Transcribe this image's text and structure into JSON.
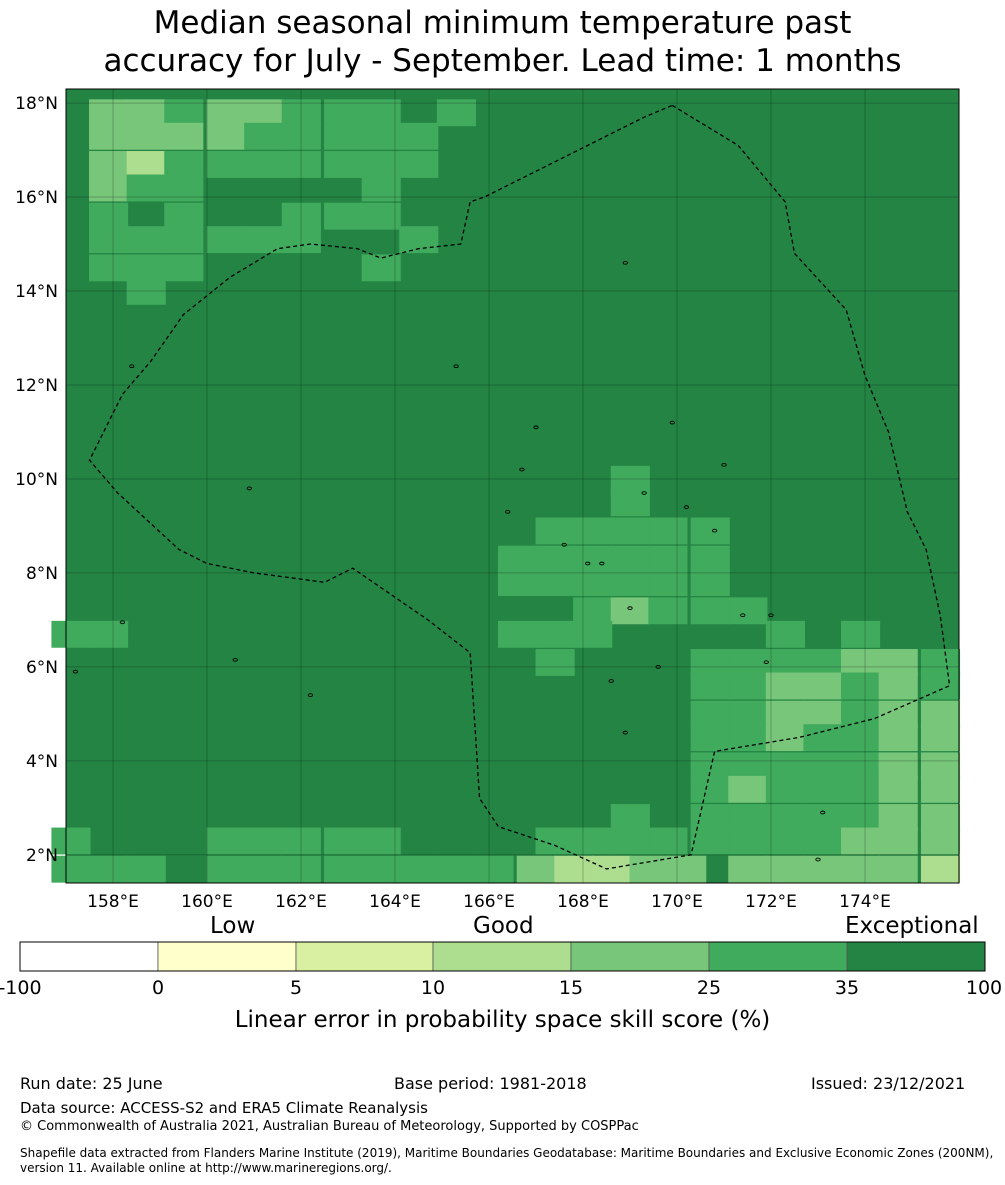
{
  "title": {
    "line1": "Median seasonal minimum temperature past",
    "line2": "accuracy for July - September. Lead time: 1 months"
  },
  "map": {
    "lon_range": [
      157.0,
      176.0
    ],
    "lat_range": [
      1.4,
      18.3
    ],
    "lon_ticks": [
      "158°E",
      "160°E",
      "162°E",
      "164°E",
      "166°E",
      "168°E",
      "170°E",
      "172°E",
      "174°E"
    ],
    "lat_ticks": [
      "2°N",
      "4°N",
      "6°N",
      "8°N",
      "10°N",
      "12°N",
      "14°N",
      "16°N",
      "18°N"
    ],
    "gridlines": true,
    "boundary": "dashed EEZ outline",
    "base_category": "35-100",
    "cells": [
      {
        "lon": 157.9,
        "lat": 17.8,
        "cat": "15-25"
      },
      {
        "lon": 158.7,
        "lat": 17.8,
        "cat": "15-25"
      },
      {
        "lon": 159.5,
        "lat": 17.8,
        "cat": "25-35"
      },
      {
        "lon": 160.4,
        "lat": 17.8,
        "cat": "15-25"
      },
      {
        "lon": 161.2,
        "lat": 17.8,
        "cat": "15-25"
      },
      {
        "lon": 162.0,
        "lat": 17.8,
        "cat": "25-35"
      },
      {
        "lon": 162.9,
        "lat": 17.8,
        "cat": "25-35"
      },
      {
        "lon": 163.7,
        "lat": 17.8,
        "cat": "25-35"
      },
      {
        "lon": 165.3,
        "lat": 17.8,
        "cat": "25-35"
      },
      {
        "lon": 157.9,
        "lat": 17.3,
        "cat": "15-25"
      },
      {
        "lon": 158.7,
        "lat": 17.3,
        "cat": "15-25"
      },
      {
        "lon": 159.5,
        "lat": 17.3,
        "cat": "15-25"
      },
      {
        "lon": 160.4,
        "lat": 17.3,
        "cat": "15-25"
      },
      {
        "lon": 161.2,
        "lat": 17.3,
        "cat": "25-35"
      },
      {
        "lon": 162.0,
        "lat": 17.3,
        "cat": "25-35"
      },
      {
        "lon": 162.9,
        "lat": 17.3,
        "cat": "25-35"
      },
      {
        "lon": 163.7,
        "lat": 17.3,
        "cat": "25-35"
      },
      {
        "lon": 164.5,
        "lat": 17.3,
        "cat": "25-35"
      },
      {
        "lon": 157.9,
        "lat": 16.7,
        "cat": "15-25"
      },
      {
        "lon": 158.7,
        "lat": 16.7,
        "cat": "10-15"
      },
      {
        "lon": 159.5,
        "lat": 16.7,
        "cat": "25-35"
      },
      {
        "lon": 160.4,
        "lat": 16.7,
        "cat": "25-35"
      },
      {
        "lon": 161.2,
        "lat": 16.7,
        "cat": "25-35"
      },
      {
        "lon": 162.0,
        "lat": 16.7,
        "cat": "25-35"
      },
      {
        "lon": 162.9,
        "lat": 16.7,
        "cat": "25-35"
      },
      {
        "lon": 163.7,
        "lat": 16.7,
        "cat": "25-35"
      },
      {
        "lon": 164.5,
        "lat": 16.7,
        "cat": "25-35"
      },
      {
        "lon": 157.9,
        "lat": 16.2,
        "cat": "15-25"
      },
      {
        "lon": 158.7,
        "lat": 16.2,
        "cat": "25-35"
      },
      {
        "lon": 159.5,
        "lat": 16.2,
        "cat": "25-35"
      },
      {
        "lon": 163.7,
        "lat": 16.2,
        "cat": "25-35"
      },
      {
        "lon": 157.9,
        "lat": 15.6,
        "cat": "25-35"
      },
      {
        "lon": 159.5,
        "lat": 15.6,
        "cat": "25-35"
      },
      {
        "lon": 162.0,
        "lat": 15.6,
        "cat": "25-35"
      },
      {
        "lon": 162.9,
        "lat": 15.6,
        "cat": "25-35"
      },
      {
        "lon": 163.7,
        "lat": 15.6,
        "cat": "25-35"
      },
      {
        "lon": 157.9,
        "lat": 15.1,
        "cat": "25-35"
      },
      {
        "lon": 158.7,
        "lat": 15.1,
        "cat": "25-35"
      },
      {
        "lon": 159.5,
        "lat": 15.1,
        "cat": "25-35"
      },
      {
        "lon": 160.4,
        "lat": 15.1,
        "cat": "25-35"
      },
      {
        "lon": 161.2,
        "lat": 15.1,
        "cat": "25-35"
      },
      {
        "lon": 162.0,
        "lat": 15.1,
        "cat": "25-35"
      },
      {
        "lon": 164.5,
        "lat": 15.1,
        "cat": "25-35"
      },
      {
        "lon": 157.9,
        "lat": 14.5,
        "cat": "25-35"
      },
      {
        "lon": 158.7,
        "lat": 14.5,
        "cat": "25-35"
      },
      {
        "lon": 159.5,
        "lat": 14.5,
        "cat": "25-35"
      },
      {
        "lon": 163.7,
        "lat": 14.5,
        "cat": "25-35"
      },
      {
        "lon": 158.7,
        "lat": 14.0,
        "cat": "25-35"
      },
      {
        "lon": 169.0,
        "lat": 10.0,
        "cat": "25-35"
      },
      {
        "lon": 169.0,
        "lat": 9.5,
        "cat": "25-35"
      },
      {
        "lon": 167.4,
        "lat": 8.9,
        "cat": "25-35"
      },
      {
        "lon": 168.2,
        "lat": 8.9,
        "cat": "25-35"
      },
      {
        "lon": 169.0,
        "lat": 8.9,
        "cat": "25-35"
      },
      {
        "lon": 169.8,
        "lat": 8.9,
        "cat": "25-35"
      },
      {
        "lon": 170.7,
        "lat": 8.9,
        "cat": "25-35"
      },
      {
        "lon": 166.6,
        "lat": 8.3,
        "cat": "25-35"
      },
      {
        "lon": 167.4,
        "lat": 8.3,
        "cat": "25-35"
      },
      {
        "lon": 168.2,
        "lat": 8.3,
        "cat": "25-35"
      },
      {
        "lon": 169.0,
        "lat": 8.3,
        "cat": "25-35"
      },
      {
        "lon": 169.8,
        "lat": 8.3,
        "cat": "25-35"
      },
      {
        "lon": 170.7,
        "lat": 8.3,
        "cat": "25-35"
      },
      {
        "lon": 166.6,
        "lat": 7.8,
        "cat": "25-35"
      },
      {
        "lon": 167.4,
        "lat": 7.8,
        "cat": "25-35"
      },
      {
        "lon": 168.2,
        "lat": 7.8,
        "cat": "25-35"
      },
      {
        "lon": 169.0,
        "lat": 7.8,
        "cat": "25-35"
      },
      {
        "lon": 169.8,
        "lat": 7.8,
        "cat": "25-35"
      },
      {
        "lon": 170.7,
        "lat": 7.8,
        "cat": "25-35"
      },
      {
        "lon": 168.2,
        "lat": 7.2,
        "cat": "25-35"
      },
      {
        "lon": 169.0,
        "lat": 7.2,
        "cat": "15-25"
      },
      {
        "lon": 169.8,
        "lat": 7.2,
        "cat": "25-35"
      },
      {
        "lon": 170.7,
        "lat": 7.2,
        "cat": "25-35"
      },
      {
        "lon": 171.5,
        "lat": 7.2,
        "cat": "25-35"
      },
      {
        "lon": 157.1,
        "lat": 6.7,
        "cat": "25-35"
      },
      {
        "lon": 157.9,
        "lat": 6.7,
        "cat": "25-35"
      },
      {
        "lon": 166.6,
        "lat": 6.7,
        "cat": "25-35"
      },
      {
        "lon": 167.4,
        "lat": 6.7,
        "cat": "25-35"
      },
      {
        "lon": 168.2,
        "lat": 6.7,
        "cat": "25-35"
      },
      {
        "lon": 172.3,
        "lat": 6.7,
        "cat": "25-35"
      },
      {
        "lon": 173.9,
        "lat": 6.7,
        "cat": "25-35"
      },
      {
        "lon": 167.4,
        "lat": 6.1,
        "cat": "25-35"
      },
      {
        "lon": 170.7,
        "lat": 6.1,
        "cat": "25-35"
      },
      {
        "lon": 171.5,
        "lat": 6.1,
        "cat": "25-35"
      },
      {
        "lon": 172.3,
        "lat": 6.1,
        "cat": "25-35"
      },
      {
        "lon": 173.1,
        "lat": 6.1,
        "cat": "25-35"
      },
      {
        "lon": 173.9,
        "lat": 6.1,
        "cat": "15-25"
      },
      {
        "lon": 174.7,
        "lat": 6.1,
        "cat": "15-25"
      },
      {
        "lon": 175.6,
        "lat": 6.1,
        "cat": "25-35"
      },
      {
        "lon": 170.7,
        "lat": 5.6,
        "cat": "25-35"
      },
      {
        "lon": 171.5,
        "lat": 5.6,
        "cat": "25-35"
      },
      {
        "lon": 172.3,
        "lat": 5.6,
        "cat": "15-25"
      },
      {
        "lon": 173.1,
        "lat": 5.6,
        "cat": "15-25"
      },
      {
        "lon": 173.9,
        "lat": 5.6,
        "cat": "25-35"
      },
      {
        "lon": 174.7,
        "lat": 5.6,
        "cat": "15-25"
      },
      {
        "lon": 175.6,
        "lat": 5.6,
        "cat": "25-35"
      },
      {
        "lon": 170.7,
        "lat": 5.0,
        "cat": "25-35"
      },
      {
        "lon": 171.5,
        "lat": 5.0,
        "cat": "25-35"
      },
      {
        "lon": 172.3,
        "lat": 5.0,
        "cat": "15-25"
      },
      {
        "lon": 173.1,
        "lat": 5.0,
        "cat": "15-25"
      },
      {
        "lon": 173.9,
        "lat": 5.0,
        "cat": "25-35"
      },
      {
        "lon": 174.7,
        "lat": 5.0,
        "cat": "15-25"
      },
      {
        "lon": 175.6,
        "lat": 5.0,
        "cat": "15-25"
      },
      {
        "lon": 170.7,
        "lat": 4.5,
        "cat": "25-35"
      },
      {
        "lon": 171.5,
        "lat": 4.5,
        "cat": "25-35"
      },
      {
        "lon": 172.3,
        "lat": 4.5,
        "cat": "15-25"
      },
      {
        "lon": 173.1,
        "lat": 4.5,
        "cat": "25-35"
      },
      {
        "lon": 173.9,
        "lat": 4.5,
        "cat": "25-35"
      },
      {
        "lon": 174.7,
        "lat": 4.5,
        "cat": "15-25"
      },
      {
        "lon": 175.6,
        "lat": 4.5,
        "cat": "15-25"
      },
      {
        "lon": 170.7,
        "lat": 3.9,
        "cat": "25-35"
      },
      {
        "lon": 171.5,
        "lat": 3.9,
        "cat": "25-35"
      },
      {
        "lon": 172.3,
        "lat": 3.9,
        "cat": "25-35"
      },
      {
        "lon": 173.1,
        "lat": 3.9,
        "cat": "25-35"
      },
      {
        "lon": 173.9,
        "lat": 3.9,
        "cat": "25-35"
      },
      {
        "lon": 174.7,
        "lat": 3.9,
        "cat": "15-25"
      },
      {
        "lon": 175.6,
        "lat": 3.9,
        "cat": "15-25"
      },
      {
        "lon": 170.7,
        "lat": 3.4,
        "cat": "25-35"
      },
      {
        "lon": 171.5,
        "lat": 3.4,
        "cat": "15-25"
      },
      {
        "lon": 172.3,
        "lat": 3.4,
        "cat": "25-35"
      },
      {
        "lon": 173.1,
        "lat": 3.4,
        "cat": "25-35"
      },
      {
        "lon": 173.9,
        "lat": 3.4,
        "cat": "25-35"
      },
      {
        "lon": 174.7,
        "lat": 3.4,
        "cat": "15-25"
      },
      {
        "lon": 175.6,
        "lat": 3.4,
        "cat": "15-25"
      },
      {
        "lon": 169.0,
        "lat": 2.8,
        "cat": "25-35"
      },
      {
        "lon": 170.7,
        "lat": 2.8,
        "cat": "25-35"
      },
      {
        "lon": 171.5,
        "lat": 2.8,
        "cat": "25-35"
      },
      {
        "lon": 172.3,
        "lat": 2.8,
        "cat": "25-35"
      },
      {
        "lon": 173.1,
        "lat": 2.8,
        "cat": "25-35"
      },
      {
        "lon": 173.9,
        "lat": 2.8,
        "cat": "25-35"
      },
      {
        "lon": 174.7,
        "lat": 2.8,
        "cat": "15-25"
      },
      {
        "lon": 175.6,
        "lat": 2.8,
        "cat": "15-25"
      },
      {
        "lon": 157.1,
        "lat": 2.3,
        "cat": "25-35"
      },
      {
        "lon": 160.4,
        "lat": 2.3,
        "cat": "25-35"
      },
      {
        "lon": 161.2,
        "lat": 2.3,
        "cat": "25-35"
      },
      {
        "lon": 162.0,
        "lat": 2.3,
        "cat": "25-35"
      },
      {
        "lon": 162.9,
        "lat": 2.3,
        "cat": "25-35"
      },
      {
        "lon": 163.7,
        "lat": 2.3,
        "cat": "25-35"
      },
      {
        "lon": 167.4,
        "lat": 2.3,
        "cat": "25-35"
      },
      {
        "lon": 168.2,
        "lat": 2.3,
        "cat": "25-35"
      },
      {
        "lon": 169.0,
        "lat": 2.3,
        "cat": "25-35"
      },
      {
        "lon": 169.8,
        "lat": 2.3,
        "cat": "25-35"
      },
      {
        "lon": 170.7,
        "lat": 2.3,
        "cat": "25-35"
      },
      {
        "lon": 171.5,
        "lat": 2.3,
        "cat": "25-35"
      },
      {
        "lon": 172.3,
        "lat": 2.3,
        "cat": "25-35"
      },
      {
        "lon": 173.1,
        "lat": 2.3,
        "cat": "25-35"
      },
      {
        "lon": 173.9,
        "lat": 2.3,
        "cat": "15-25"
      },
      {
        "lon": 174.7,
        "lat": 2.3,
        "cat": "15-25"
      },
      {
        "lon": 175.6,
        "lat": 2.3,
        "cat": "15-25"
      },
      {
        "lon": 157.1,
        "lat": 1.7,
        "cat": "25-35"
      },
      {
        "lon": 157.9,
        "lat": 1.7,
        "cat": "25-35"
      },
      {
        "lon": 158.7,
        "lat": 1.7,
        "cat": "25-35"
      },
      {
        "lon": 160.4,
        "lat": 1.7,
        "cat": "25-35"
      },
      {
        "lon": 161.2,
        "lat": 1.7,
        "cat": "25-35"
      },
      {
        "lon": 162.0,
        "lat": 1.7,
        "cat": "25-35"
      },
      {
        "lon": 162.9,
        "lat": 1.7,
        "cat": "25-35"
      },
      {
        "lon": 163.7,
        "lat": 1.7,
        "cat": "25-35"
      },
      {
        "lon": 164.5,
        "lat": 1.7,
        "cat": "25-35"
      },
      {
        "lon": 165.3,
        "lat": 1.7,
        "cat": "25-35"
      },
      {
        "lon": 166.1,
        "lat": 1.7,
        "cat": "25-35"
      },
      {
        "lon": 167.0,
        "lat": 1.7,
        "cat": "15-25"
      },
      {
        "lon": 167.8,
        "lat": 1.7,
        "cat": "10-15"
      },
      {
        "lon": 168.6,
        "lat": 1.7,
        "cat": "10-15"
      },
      {
        "lon": 169.4,
        "lat": 1.7,
        "cat": "15-25"
      },
      {
        "lon": 170.2,
        "lat": 1.7,
        "cat": "15-25"
      },
      {
        "lon": 171.5,
        "lat": 1.7,
        "cat": "15-25"
      },
      {
        "lon": 172.3,
        "lat": 1.7,
        "cat": "15-25"
      },
      {
        "lon": 173.1,
        "lat": 1.7,
        "cat": "15-25"
      },
      {
        "lon": 173.9,
        "lat": 1.7,
        "cat": "15-25"
      },
      {
        "lon": 174.7,
        "lat": 1.7,
        "cat": "15-25"
      },
      {
        "lon": 175.6,
        "lat": 1.7,
        "cat": "10-15"
      }
    ],
    "eez_outline": [
      [
        169.9,
        17.95
      ],
      [
        171.3,
        17.1
      ],
      [
        172.3,
        15.9
      ],
      [
        172.5,
        14.8
      ],
      [
        173.6,
        13.6
      ],
      [
        174.0,
        12.2
      ],
      [
        174.5,
        11.0
      ],
      [
        174.9,
        9.3
      ],
      [
        175.3,
        8.5
      ],
      [
        175.6,
        7.1
      ],
      [
        175.8,
        5.6
      ],
      [
        174.2,
        4.9
      ],
      [
        172.6,
        4.5
      ],
      [
        170.8,
        4.2
      ],
      [
        170.3,
        2.0
      ],
      [
        168.5,
        1.7
      ],
      [
        167.4,
        2.2
      ],
      [
        166.2,
        2.6
      ],
      [
        165.8,
        3.2
      ],
      [
        165.6,
        6.3
      ],
      [
        164.7,
        7.0
      ],
      [
        163.1,
        8.1
      ],
      [
        162.5,
        7.8
      ],
      [
        161.0,
        8.0
      ],
      [
        160.0,
        8.2
      ],
      [
        159.4,
        8.5
      ],
      [
        158.1,
        9.7
      ],
      [
        157.5,
        10.4
      ],
      [
        157.8,
        11.0
      ],
      [
        158.2,
        11.8
      ],
      [
        158.8,
        12.5
      ],
      [
        159.5,
        13.5
      ],
      [
        160.5,
        14.3
      ],
      [
        161.5,
        14.9
      ],
      [
        162.2,
        15.0
      ],
      [
        163.2,
        14.9
      ],
      [
        163.7,
        14.7
      ],
      [
        164.5,
        14.9
      ],
      [
        165.4,
        15.0
      ],
      [
        165.6,
        15.9
      ],
      [
        165.9,
        16.0
      ],
      [
        167.5,
        16.8
      ],
      [
        169.3,
        17.7
      ],
      [
        169.9,
        17.95
      ]
    ]
  },
  "colorbar": {
    "categories": [
      "Low",
      "Good",
      "Exceptional"
    ],
    "ticks": [
      "-100",
      "0",
      "5",
      "10",
      "15",
      "25",
      "35",
      "100"
    ],
    "colors": [
      "#ffffff",
      "#ffffcc",
      "#d9f0a3",
      "#addd8e",
      "#78c679",
      "#41ab5d",
      "#238443"
    ],
    "label": "Linear error in probability space skill score (%)"
  },
  "footer": {
    "run_date": "Run date: 25 June",
    "base_period": "Base period: 1981-2018",
    "issued": "Issued: 23/12/2021",
    "data_source": "Data source: ACCESS-S2 and ERA5 Climate Reanalysis",
    "copyright": "© Commonwealth of Australia 2021, Australian Bureau of Meteorology, Supported by COSPPac",
    "shapefile": "Shapefile data extracted from Flanders Marine Institute (2019), Maritime Boundaries Geodatabase: Maritime Boundaries and Exclusive Economic Zones (200NM), version 11. Available online at http://www.marineregions.org/."
  }
}
